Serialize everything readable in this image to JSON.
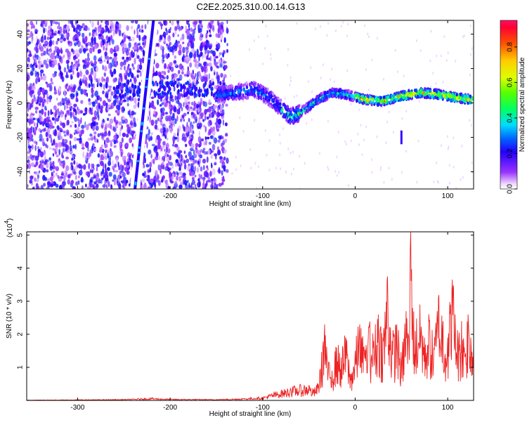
{
  "title": "C2E2.2025.310.00.14.G13",
  "chart_data": [
    {
      "type": "heatmap",
      "xlabel": "Height of straight line (km)",
      "ylabel": "Frequency (Hz)",
      "xlim": [
        -355,
        128
      ],
      "ylim": [
        -50,
        48
      ],
      "xticks": [
        -300,
        -200,
        -100,
        0,
        100
      ],
      "yticks": [
        -40,
        -20,
        0,
        20,
        40
      ],
      "colorbar": {
        "label": "Normalized spectral amplitude",
        "range": [
          0.0,
          0.95
        ],
        "ticks": [
          "0.0",
          "0.2",
          "0.4",
          "0.6",
          "0.8"
        ],
        "colormap": "rainbow (violet→blue→cyan→green→yellow→red)"
      },
      "features": [
        {
          "name": "diagonal streak",
          "x_at_top": -218,
          "x_at_bottom": -238,
          "y_range": [
            -50,
            48
          ],
          "amplitude": 0.3
        },
        {
          "name": "ridge",
          "points": [
            [
              -140,
              5
            ],
            [
              -110,
              8
            ],
            [
              -95,
              4
            ],
            [
              -80,
              -3
            ],
            [
              -70,
              -8
            ],
            [
              -60,
              -6
            ],
            [
              -50,
              -2
            ],
            [
              -40,
              2
            ],
            [
              -25,
              6
            ],
            [
              -10,
              5
            ],
            [
              10,
              2
            ],
            [
              30,
              1
            ],
            [
              50,
              4
            ],
            [
              70,
              6
            ],
            [
              90,
              5
            ],
            [
              110,
              3
            ],
            [
              125,
              2
            ]
          ],
          "amplitude_peak": 0.9
        }
      ]
    },
    {
      "type": "line",
      "xlabel": "Height of straight line (km)",
      "ylabel": "SNR (10 * v/v)",
      "y_multiplier": "(x10",
      "y_multiplier_exp": "4",
      "xlim": [
        -355,
        128
      ],
      "ylim": [
        0,
        5.1
      ],
      "xticks": [
        -300,
        -200,
        -100,
        0,
        100
      ],
      "yticks": [
        1,
        2,
        3,
        4,
        5
      ],
      "color": "#ee2222",
      "series": [
        {
          "x": [
            -355,
            -300,
            -250,
            -220,
            -200,
            -150,
            -120,
            -100,
            -90,
            -80,
            -70,
            -60,
            -50,
            -45,
            -40,
            -35,
            -33,
            -30,
            -25,
            -20,
            -15,
            -10,
            -5,
            0,
            5,
            10,
            15,
            20,
            25,
            30,
            35,
            40,
            45,
            50,
            55,
            58,
            60,
            62,
            65,
            70,
            75,
            80,
            85,
            90,
            95,
            100,
            105,
            108,
            112,
            115,
            118,
            122,
            125,
            128
          ],
          "y": [
            0.01,
            0.02,
            0.03,
            0.07,
            0.04,
            0.03,
            0.06,
            0.1,
            0.2,
            0.28,
            0.36,
            0.42,
            0.45,
            0.3,
            0.5,
            1.6,
            2.3,
            1.1,
            0.9,
            1.6,
            1.3,
            1.9,
            0.8,
            1.5,
            2.3,
            1.4,
            2.2,
            1.8,
            2.6,
            1.9,
            3.75,
            1.8,
            2.3,
            1.2,
            2.7,
            1.9,
            5.1,
            2.8,
            2.1,
            2.9,
            1.9,
            2.4,
            1.6,
            3.1,
            2.4,
            1.9,
            3.65,
            2.6,
            1.8,
            2.4,
            1.6,
            2.6,
            1.9,
            1.7
          ]
        }
      ]
    }
  ]
}
